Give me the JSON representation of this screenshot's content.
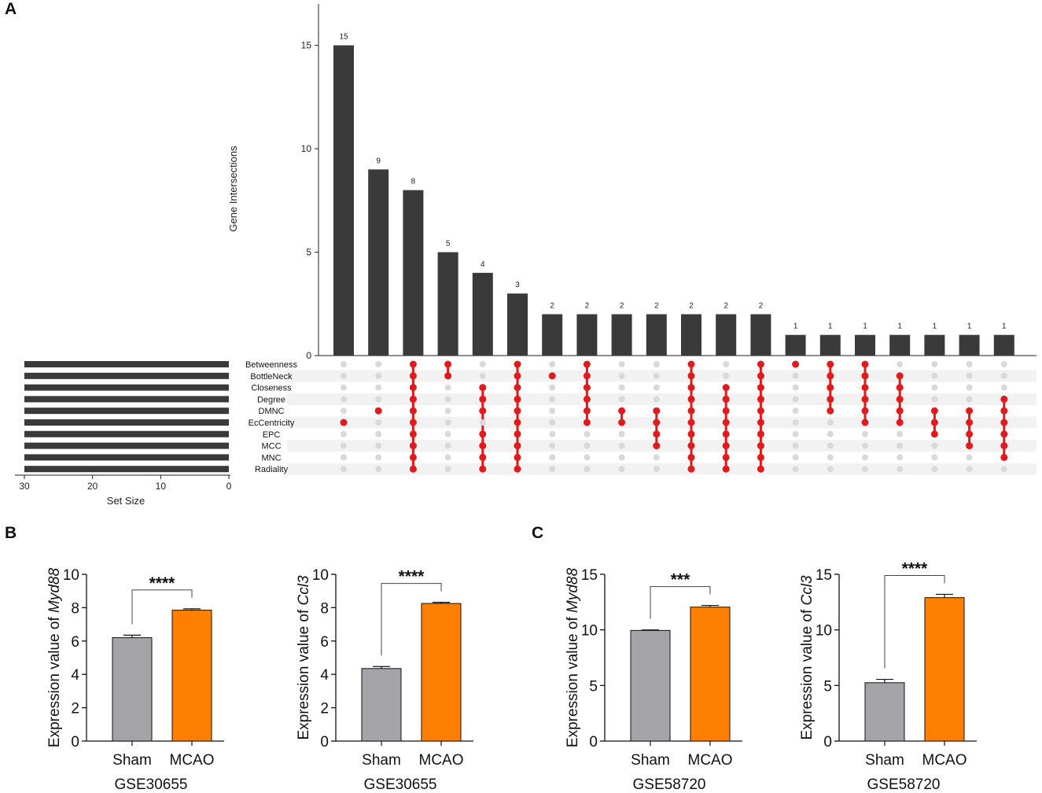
{
  "panel_labels": {
    "a": "A",
    "b": "B",
    "c": "C"
  },
  "colors": {
    "bar": "#3a3a3a",
    "dot_on": "#e31a1c",
    "dot_off": "#d9d9d9",
    "row_shade": "#f2f2f2",
    "sham": "#a3a3a8",
    "mcao": "#ff7f00"
  },
  "chart_data": [
    {
      "type": "upset",
      "panel": "A",
      "ylabel": "Gene Intersections",
      "ylim": [
        0,
        17
      ],
      "yticks": [
        "0",
        "5",
        "10",
        "15"
      ],
      "set_size_label": "Set Size",
      "set_size_ticks": [
        "30",
        "20",
        "10",
        "0"
      ],
      "set_size_range": [
        30,
        0
      ],
      "sets": [
        "Betweenness",
        "BottleNeck",
        "Closeness",
        "Degree",
        "DMNC",
        "EcCentricity",
        "EPC",
        "MCC",
        "MNC",
        "Radiality"
      ],
      "set_sizes": [
        30,
        30,
        30,
        30,
        30,
        30,
        30,
        30,
        30,
        30
      ],
      "intersection_sizes": [
        15,
        9,
        8,
        5,
        4,
        3,
        2,
        2,
        2,
        2,
        2,
        2,
        2,
        1,
        1,
        1,
        1,
        1,
        1,
        1
      ],
      "intersection_labels": [
        "15",
        "9",
        "8",
        "5",
        "4",
        "3",
        "2",
        "2",
        "2",
        "2",
        "2",
        "2",
        "2",
        "1",
        "1",
        "1",
        "1",
        "1",
        "1",
        "1"
      ],
      "memberships": [
        [
          5
        ],
        [
          4
        ],
        [
          0,
          1,
          2,
          3,
          4,
          5,
          6,
          7,
          8,
          9
        ],
        [
          0,
          1
        ],
        [
          2,
          3,
          4,
          6,
          7,
          8,
          9
        ],
        [
          0,
          1,
          2,
          3,
          4,
          5,
          6,
          7,
          8,
          9
        ],
        [
          1
        ],
        [
          0,
          1,
          2,
          3,
          4,
          5
        ],
        [
          4,
          5
        ],
        [
          4,
          5,
          6,
          7
        ],
        [
          0,
          1,
          2,
          3,
          4,
          5,
          6,
          7,
          8,
          9
        ],
        [
          2,
          3,
          4,
          5,
          6,
          7,
          8,
          9
        ],
        [
          0,
          1,
          2,
          3,
          4,
          5,
          6,
          7,
          8,
          9
        ],
        [
          0
        ],
        [
          0,
          1,
          2,
          3,
          4
        ],
        [
          0,
          1,
          2,
          3,
          4,
          5
        ],
        [
          1,
          2,
          3,
          4,
          5
        ],
        [
          4,
          5,
          6
        ],
        [
          4,
          5,
          6,
          7
        ],
        [
          3,
          4,
          5,
          6,
          7,
          8
        ]
      ]
    },
    {
      "type": "bar",
      "panel": "B",
      "categories": [
        "Sham",
        "MCAO"
      ],
      "values": [
        6.2,
        7.85
      ],
      "errors": [
        0.15,
        0.08
      ],
      "ylabel_prefix": "Expression value of ",
      "gene": "Myd88",
      "xlabel": "GSE30655",
      "ylim": [
        0,
        10
      ],
      "yticks": [
        "0",
        "2",
        "4",
        "6",
        "8",
        "10"
      ],
      "significance": "****"
    },
    {
      "type": "bar",
      "panel": "B",
      "categories": [
        "Sham",
        "MCAO"
      ],
      "values": [
        4.35,
        8.25
      ],
      "errors": [
        0.12,
        0.07
      ],
      "ylabel_prefix": "Expression value of ",
      "gene": "Ccl3",
      "xlabel": "GSE30655",
      "ylim": [
        0,
        10
      ],
      "yticks": [
        "0",
        "2",
        "4",
        "6",
        "8",
        "10"
      ],
      "significance": "****"
    },
    {
      "type": "bar",
      "panel": "C",
      "categories": [
        "Sham",
        "MCAO"
      ],
      "values": [
        9.95,
        12.05
      ],
      "errors": [
        0.05,
        0.15
      ],
      "ylabel_prefix": "Expression value of ",
      "gene": "Myd88",
      "xlabel": "GSE58720",
      "ylim": [
        0,
        15
      ],
      "yticks": [
        "0",
        "5",
        "10",
        "15"
      ],
      "significance": "***"
    },
    {
      "type": "bar",
      "panel": "C",
      "categories": [
        "Sham",
        "MCAO"
      ],
      "values": [
        5.25,
        12.9
      ],
      "errors": [
        0.3,
        0.3
      ],
      "ylabel_prefix": "Expression value of ",
      "gene": "Ccl3",
      "xlabel": "GSE58720",
      "ylim": [
        0,
        15
      ],
      "yticks": [
        "0",
        "5",
        "10",
        "15"
      ],
      "significance": "****"
    }
  ]
}
